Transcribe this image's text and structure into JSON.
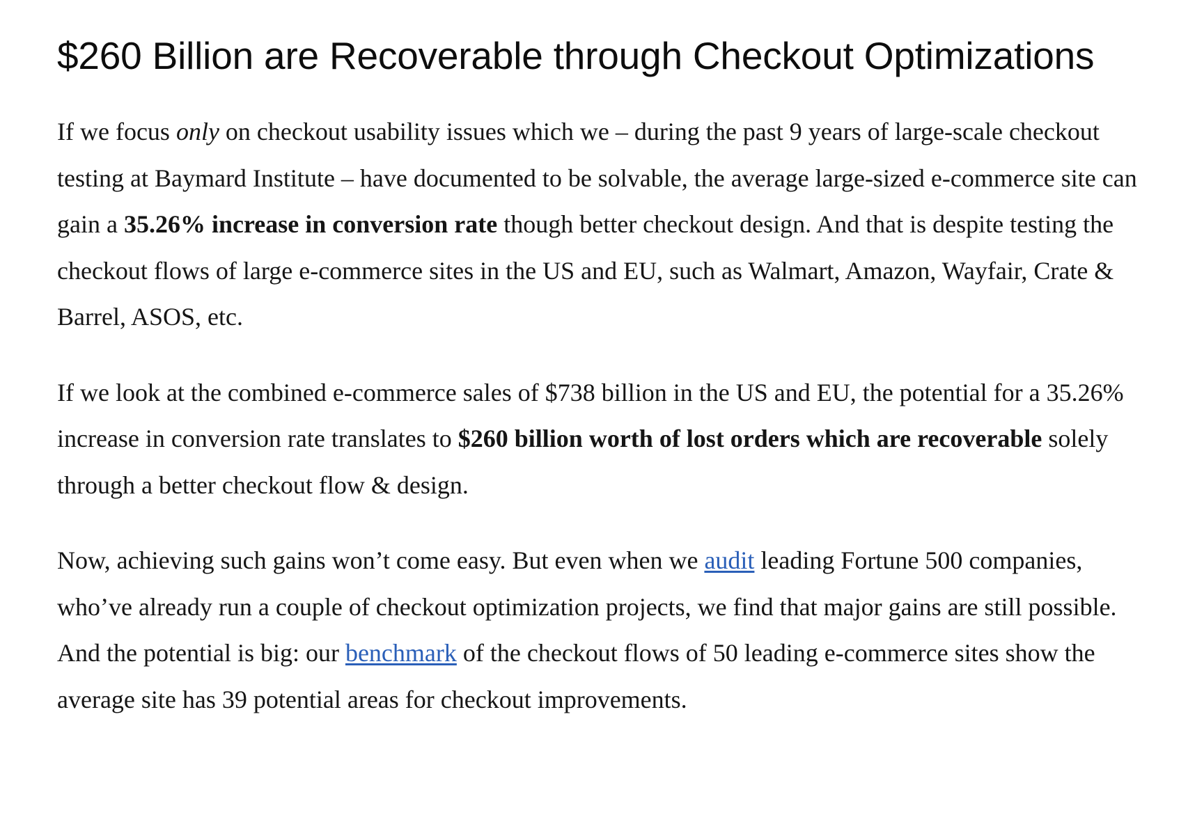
{
  "heading": "$260 Billion are Recoverable through Checkout Optimizations",
  "p1": {
    "t1": "If we focus ",
    "em": "only",
    "t2": " on checkout usability issues which we – during the past 9 years of large-scale checkout testing at Baymard Institute – have documented to be solvable, the average large-sized e-commerce site can gain a ",
    "bold": "35.26% increase in conversion rate",
    "t3": " though better checkout design. And that is despite testing the checkout flows of large e-commerce sites in the US and EU, such as Walmart, Amazon, Wayfair, Crate & Barrel, ASOS, etc."
  },
  "p2": {
    "t1": "If we look at the combined e-commerce sales of $738 billion in the US and EU, the potential for a 35.26% increase in conversion rate translates to ",
    "bold": "$260 billion worth of lost orders which are recoverable",
    "t2": " solely through a better checkout flow & design."
  },
  "p3": {
    "t1": "Now, achieving such gains won’t come easy. But even when we ",
    "link1": "audit",
    "t2": " leading Fortune 500 companies, who’ve already run a couple of checkout optimization projects, we find that major gains are still possible. And the potential is big: our ",
    "link2": "benchmark",
    "t3": " of the checkout flows of 50 leading e-commerce sites show the average site has 39 potential areas for checkout improvements."
  },
  "colors": {
    "link": "#2a5fb8",
    "text": "#151515"
  }
}
